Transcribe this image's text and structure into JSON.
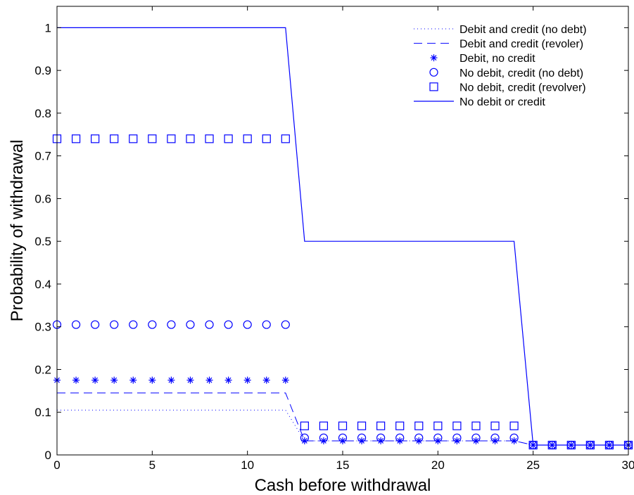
{
  "chart_data": {
    "type": "line",
    "xlabel": "Cash before withdrawal",
    "ylabel": "Probability of withdrawal",
    "xlim": [
      0,
      30
    ],
    "ylim": [
      0,
      1.05
    ],
    "xticks": [
      "0",
      "5",
      "10",
      "15",
      "20",
      "25",
      "30"
    ],
    "xtick_values": [
      0,
      5,
      10,
      15,
      20,
      25,
      30
    ],
    "yticks": [
      "0",
      "0.1",
      "0.2",
      "0.3",
      "0.4",
      "0.5",
      "0.6",
      "0.7",
      "0.8",
      "0.9",
      "1"
    ],
    "ytick_values": [
      0,
      0.1,
      0.2,
      0.3,
      0.4,
      0.5,
      0.6,
      0.7,
      0.8,
      0.9,
      1.0
    ],
    "grid": false,
    "legend_position": "top-right",
    "color": "#0000ff",
    "x": [
      0,
      1,
      2,
      3,
      4,
      5,
      6,
      7,
      8,
      9,
      10,
      11,
      12,
      13,
      14,
      15,
      16,
      17,
      18,
      19,
      20,
      21,
      22,
      23,
      24,
      25,
      26,
      27,
      28,
      29,
      30
    ],
    "series": [
      {
        "name": "Debit and credit (no debt)",
        "style": "dotted",
        "values": [
          0.105,
          0.105,
          0.105,
          0.105,
          0.105,
          0.105,
          0.105,
          0.105,
          0.105,
          0.105,
          0.105,
          0.105,
          0.105,
          0.033,
          0.033,
          0.033,
          0.033,
          0.033,
          0.033,
          0.033,
          0.033,
          0.033,
          0.033,
          0.033,
          0.033,
          0.023,
          0.023,
          0.023,
          0.023,
          0.023,
          0.023
        ]
      },
      {
        "name": "Debit and credit (revoler)",
        "style": "dashed",
        "values": [
          0.145,
          0.145,
          0.145,
          0.145,
          0.145,
          0.145,
          0.145,
          0.145,
          0.145,
          0.145,
          0.145,
          0.145,
          0.145,
          0.033,
          0.033,
          0.033,
          0.033,
          0.033,
          0.033,
          0.033,
          0.033,
          0.033,
          0.033,
          0.033,
          0.033,
          0.023,
          0.023,
          0.023,
          0.023,
          0.023,
          0.023
        ]
      },
      {
        "name": "Debit, no credit",
        "style": "asterisk",
        "values": [
          0.175,
          0.175,
          0.175,
          0.175,
          0.175,
          0.175,
          0.175,
          0.175,
          0.175,
          0.175,
          0.175,
          0.175,
          0.175,
          0.033,
          0.033,
          0.033,
          0.033,
          0.033,
          0.033,
          0.033,
          0.033,
          0.033,
          0.033,
          0.033,
          0.033,
          0.023,
          0.023,
          0.023,
          0.023,
          0.023,
          0.023
        ]
      },
      {
        "name": "No debit, credit (no debt)",
        "style": "circle",
        "values": [
          0.305,
          0.305,
          0.305,
          0.305,
          0.305,
          0.305,
          0.305,
          0.305,
          0.305,
          0.305,
          0.305,
          0.305,
          0.305,
          0.04,
          0.04,
          0.04,
          0.04,
          0.04,
          0.04,
          0.04,
          0.04,
          0.04,
          0.04,
          0.04,
          0.04,
          0.023,
          0.023,
          0.023,
          0.023,
          0.023,
          0.023
        ]
      },
      {
        "name": "No debit, credit (revolver)",
        "style": "square",
        "values": [
          0.74,
          0.74,
          0.74,
          0.74,
          0.74,
          0.74,
          0.74,
          0.74,
          0.74,
          0.74,
          0.74,
          0.74,
          0.74,
          0.068,
          0.068,
          0.068,
          0.068,
          0.068,
          0.068,
          0.068,
          0.068,
          0.068,
          0.068,
          0.068,
          0.068,
          0.023,
          0.023,
          0.023,
          0.023,
          0.023,
          0.023
        ]
      },
      {
        "name": "No debit or credit",
        "style": "solid",
        "values": [
          1,
          1,
          1,
          1,
          1,
          1,
          1,
          1,
          1,
          1,
          1,
          1,
          1,
          0.5,
          0.5,
          0.5,
          0.5,
          0.5,
          0.5,
          0.5,
          0.5,
          0.5,
          0.5,
          0.5,
          0.5,
          0.023,
          0.023,
          0.023,
          0.023,
          0.023,
          0.023
        ]
      }
    ]
  }
}
